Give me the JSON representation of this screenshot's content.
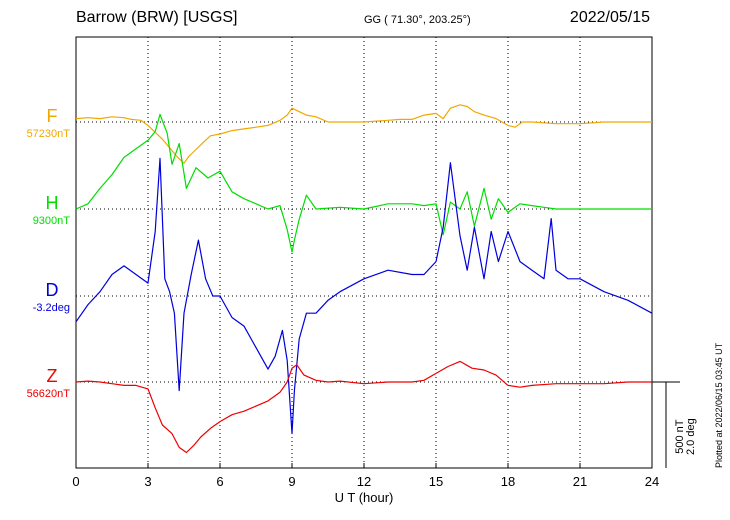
{
  "header": {
    "station": "Barrow (BRW)  [USGS]",
    "coords": "GG ( 71.30°, 203.25°)",
    "date": "2022/05/15"
  },
  "plotted_note": "Plotted at 2022/06/15 03:45 UT",
  "scale_bar": {
    "line1": "500 nT",
    "line2": "2.0 deg"
  },
  "colors": {
    "F": "#f0a800",
    "H": "#00dd00",
    "D": "#0000dd",
    "Z": "#ee0000",
    "grid": "#000000"
  },
  "chart_data": {
    "type": "line",
    "xlabel": "U T (hour)",
    "xlim": [
      0,
      24
    ],
    "xticks": [
      0,
      3,
      6,
      9,
      12,
      15,
      18,
      21,
      24
    ],
    "grid": true,
    "series": [
      {
        "name": "F",
        "baseline_label": "57230nT",
        "unit": "nT",
        "x": [
          0,
          0.5,
          1,
          1.5,
          2,
          2.3,
          2.7,
          3,
          3.3,
          3.6,
          3.9,
          4.2,
          4.5,
          4.7,
          5,
          5.3,
          5.6,
          6,
          6.5,
          7,
          7.5,
          8,
          8.5,
          8.8,
          9,
          9.3,
          9.6,
          10,
          10.5,
          11,
          12,
          13,
          13.5,
          14,
          14.5,
          15,
          15.3,
          15.6,
          16,
          16.3,
          16.6,
          17,
          17.5,
          18,
          18.3,
          18.6,
          19,
          20,
          21,
          22,
          23,
          24
        ],
        "values": [
          20,
          25,
          20,
          30,
          25,
          15,
          10,
          -20,
          -60,
          -100,
          -150,
          -200,
          -240,
          -200,
          -160,
          -120,
          -80,
          -70,
          -50,
          -40,
          -30,
          -20,
          10,
          40,
          80,
          60,
          40,
          30,
          0,
          0,
          0,
          10,
          15,
          15,
          40,
          50,
          20,
          80,
          100,
          90,
          60,
          40,
          20,
          -20,
          -30,
          0,
          0,
          -10,
          -10,
          0,
          0,
          0
        ]
      },
      {
        "name": "H",
        "baseline_label": "9300nT",
        "unit": "nT",
        "x": [
          0,
          0.5,
          1,
          1.5,
          2,
          2.5,
          3,
          3.3,
          3.5,
          3.8,
          4,
          4.3,
          4.6,
          5,
          5.5,
          6,
          6.5,
          7,
          7.5,
          8,
          8.5,
          8.8,
          9,
          9.1,
          9.3,
          9.6,
          10,
          11,
          12,
          13,
          14,
          14.5,
          15,
          15.3,
          15.6,
          16,
          16.3,
          16.6,
          17,
          17.3,
          17.6,
          18,
          18.5,
          19,
          19.5,
          20,
          21,
          22,
          23,
          24
        ],
        "values": [
          0,
          30,
          120,
          200,
          300,
          350,
          400,
          450,
          550,
          440,
          260,
          380,
          120,
          240,
          180,
          220,
          100,
          60,
          30,
          0,
          20,
          -120,
          -250,
          -180,
          -60,
          80,
          0,
          10,
          0,
          30,
          30,
          20,
          30,
          -150,
          40,
          0,
          100,
          -100,
          120,
          -60,
          60,
          -20,
          30,
          20,
          10,
          0,
          0,
          0,
          0,
          0
        ]
      },
      {
        "name": "D",
        "baseline_label": "-3.2deg",
        "unit": "deg",
        "x": [
          0,
          0.5,
          1,
          1.5,
          2,
          2.5,
          3,
          3.3,
          3.5,
          3.7,
          3.9,
          4.1,
          4.3,
          4.5,
          4.8,
          5.1,
          5.4,
          5.7,
          6,
          6.5,
          7,
          7.5,
          8,
          8.3,
          8.6,
          8.8,
          9,
          9.1,
          9.3,
          9.6,
          10,
          10.5,
          11,
          12,
          13,
          14,
          14.5,
          15,
          15.3,
          15.6,
          16,
          16.3,
          16.6,
          17,
          17.3,
          17.6,
          18,
          18.5,
          19,
          19.5,
          19.8,
          20,
          20.5,
          21,
          22,
          23,
          24
        ],
        "values": [
          -0.6,
          -0.2,
          0.1,
          0.5,
          0.7,
          0.5,
          0.3,
          1.5,
          3.2,
          0.4,
          0.1,
          -0.4,
          -2.2,
          -0.4,
          0.5,
          1.3,
          0.4,
          0,
          0,
          -0.5,
          -0.7,
          -1.2,
          -1.7,
          -1.4,
          -0.8,
          -1.5,
          -3.2,
          -2.2,
          -1,
          -0.4,
          -0.4,
          -0.1,
          0.1,
          0.4,
          0.6,
          0.5,
          0.5,
          0.8,
          1.6,
          3.1,
          1.4,
          0.6,
          1.6,
          0.4,
          1.5,
          0.8,
          1.5,
          0.8,
          0.6,
          0.4,
          1.8,
          0.6,
          0.4,
          0.4,
          0.1,
          -0.1,
          -0.4
        ]
      },
      {
        "name": "Z",
        "baseline_label": "56620nT",
        "unit": "nT",
        "x": [
          0,
          0.5,
          1,
          1.5,
          2,
          2.5,
          3,
          3.3,
          3.6,
          4,
          4.3,
          4.6,
          4.9,
          5.2,
          5.6,
          6,
          6.5,
          7,
          7.5,
          8,
          8.5,
          8.8,
          9,
          9.2,
          9.5,
          10,
          10.5,
          11,
          12,
          13,
          14,
          14.5,
          15,
          15.5,
          16,
          16.5,
          17,
          17.5,
          18,
          18.5,
          19,
          20,
          21,
          22,
          23,
          24
        ],
        "values": [
          0,
          5,
          0,
          -10,
          -20,
          -20,
          -40,
          -150,
          -250,
          -300,
          -380,
          -410,
          -370,
          -320,
          -270,
          -230,
          -190,
          -170,
          -140,
          -110,
          -60,
          0,
          80,
          100,
          40,
          10,
          0,
          5,
          -10,
          0,
          0,
          10,
          50,
          90,
          120,
          80,
          70,
          40,
          -20,
          -30,
          -20,
          -10,
          -10,
          -10,
          0,
          0
        ]
      }
    ]
  }
}
